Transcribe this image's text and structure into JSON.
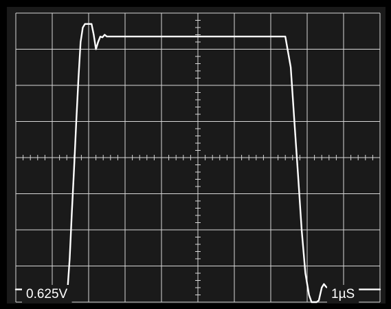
{
  "chart_data": {
    "type": "line",
    "title": "",
    "xlabel": "",
    "ylabel": "",
    "grid": true,
    "legend": "none",
    "divisions": {
      "x": 10,
      "y": 8
    },
    "minor_ticks_per_division": 5,
    "xlim": [
      0,
      10
    ],
    "ylim": [
      0,
      8
    ],
    "scales": {
      "volts_per_div": "0.625V",
      "time_per_div": "1µS"
    },
    "colors": {
      "background": "#1a1a1a",
      "grid": "#d8d8d8",
      "trace": "#ffffff",
      "frame": "#000000",
      "text": "#ffffff"
    },
    "series": [
      {
        "values_unit": "divisions",
        "x": [
          0.0,
          1.3,
          1.42,
          1.48,
          1.54,
          1.6,
          1.66,
          1.72,
          1.78,
          1.84,
          1.9,
          1.96,
          2.02,
          2.08,
          2.14,
          2.2,
          2.26,
          2.32,
          2.38,
          2.44,
          2.5,
          2.55,
          2.62,
          2.7,
          3.0,
          5.0,
          7.4,
          7.55,
          7.65,
          7.75,
          7.85,
          7.95,
          8.05,
          8.12,
          8.2,
          8.26,
          8.32,
          8.4,
          8.46,
          8.52,
          8.6,
          8.66,
          8.72,
          8.82,
          9.0,
          10.0
        ],
        "y": [
          0.35,
          0.35,
          0.35,
          1.2,
          2.5,
          3.7,
          5.0,
          6.2,
          7.2,
          7.6,
          7.7,
          7.7,
          7.7,
          7.7,
          7.4,
          7.0,
          7.2,
          7.35,
          7.33,
          7.4,
          7.35,
          7.35,
          7.35,
          7.35,
          7.35,
          7.35,
          7.35,
          6.5,
          5.0,
          3.5,
          2.0,
          0.8,
          0.2,
          0.0,
          0.0,
          0.0,
          0.05,
          0.4,
          0.5,
          0.42,
          0.38,
          0.37,
          0.35,
          0.35,
          0.35,
          0.35
        ]
      }
    ]
  }
}
